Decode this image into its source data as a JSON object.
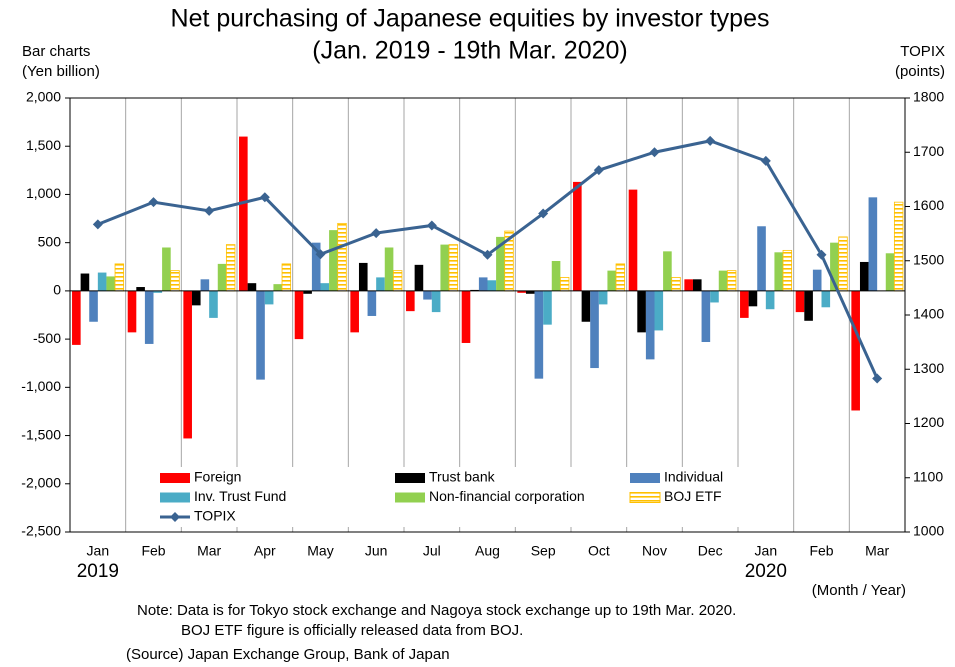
{
  "chart_data": {
    "type": "bar_line",
    "title": "Net purchasing of Japanese equities by investor types",
    "subtitle": "(Jan. 2019 - 19th Mar. 2020)",
    "y_label": [
      "Bar charts",
      "(Yen billion)"
    ],
    "y2_label": [
      "TOPIX",
      "(points)"
    ],
    "x_label": "(Month / Year)",
    "categories": [
      "Jan",
      "Feb",
      "Mar",
      "Apr",
      "May",
      "Jun",
      "Jul",
      "Aug",
      "Sep",
      "Oct",
      "Nov",
      "Dec",
      "Jan",
      "Feb",
      "Mar"
    ],
    "year_labels": [
      {
        "index": 0,
        "label": "2019"
      },
      {
        "index": 12,
        "label": "2020"
      }
    ],
    "series": [
      {
        "name": "Foreign",
        "color": "#ff0000",
        "values": [
          -560,
          -430,
          -1530,
          1600,
          -500,
          -430,
          -210,
          -540,
          -20,
          1130,
          1050,
          120,
          -280,
          -220,
          -1240
        ]
      },
      {
        "name": "Trust bank",
        "color": "#000000",
        "values": [
          180,
          40,
          -150,
          80,
          -30,
          290,
          270,
          10,
          -30,
          -320,
          -430,
          120,
          -160,
          -310,
          300
        ]
      },
      {
        "name": "Individual",
        "color": "#4f81bd",
        "values": [
          -320,
          -550,
          120,
          -920,
          500,
          -260,
          -90,
          140,
          -910,
          -800,
          -710,
          -530,
          670,
          220,
          970
        ]
      },
      {
        "name": "Inv. Trust Fund",
        "color": "#4bacc6",
        "values": [
          190,
          -20,
          -280,
          -140,
          80,
          140,
          -220,
          110,
          -350,
          -140,
          -410,
          -120,
          -190,
          -170,
          0
        ]
      },
      {
        "name": "Non-financial corporation",
        "color": "#92d050",
        "values": [
          150,
          450,
          280,
          70,
          630,
          450,
          480,
          560,
          310,
          210,
          410,
          210,
          400,
          500,
          390
        ]
      },
      {
        "name": "BOJ ETF",
        "color": "#ffc000",
        "values": [
          280,
          210,
          480,
          280,
          700,
          210,
          480,
          620,
          140,
          280,
          140,
          210,
          420,
          560,
          920
        ]
      },
      {
        "name": "TOPIX",
        "color": "#3a6391",
        "axis": "y2",
        "values": [
          1567,
          1608,
          1592,
          1617,
          1512,
          1551,
          1565,
          1511,
          1587,
          1667,
          1700,
          1721,
          1684,
          1511,
          1283
        ]
      }
    ],
    "ylim": [
      -2500,
      2000
    ],
    "yticks": [
      {
        "value": -2500,
        "label": "-2,500"
      },
      {
        "value": -2000,
        "label": "-2,000"
      },
      {
        "value": -1500,
        "label": "-1,500"
      },
      {
        "value": -1000,
        "label": "-1,000"
      },
      -500,
      0,
      500,
      {
        "value": 1000,
        "label": "1,000"
      },
      {
        "value": 1500,
        "label": "1,500"
      },
      {
        "value": 2000,
        "label": "2,000"
      }
    ],
    "y2lim": [
      1000,
      1800
    ],
    "y2ticks": [
      1000,
      1100,
      1200,
      1300,
      1400,
      1500,
      1600,
      1700,
      1800
    ],
    "notes": [
      "Note: Data is for Tokyo stock exchange and Nagoya stock exchange up to 19th Mar. 2020.",
      "BOJ ETF figure is officially released data from BOJ.",
      "(Source) Japan Exchange Group, Bank of Japan"
    ]
  }
}
